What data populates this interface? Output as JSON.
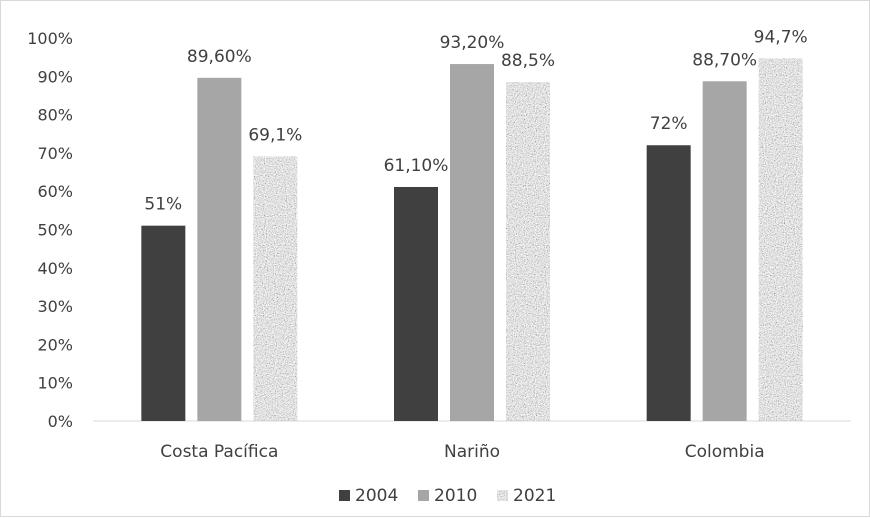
{
  "chart_data": {
    "type": "bar",
    "title": "",
    "xlabel": "",
    "ylabel": "",
    "categories": [
      "Costa Pacífica",
      "Nariño",
      "Colombia"
    ],
    "series": [
      {
        "name": "2004",
        "values": [
          51,
          61.1,
          72
        ],
        "labels": [
          "51%",
          "61,10%",
          "72%"
        ],
        "color": "#404040",
        "fill": "solid"
      },
      {
        "name": "2010",
        "values": [
          89.6,
          93.2,
          88.7
        ],
        "labels": [
          "89,60%",
          "93,20%",
          "88,70%"
        ],
        "color": "#a6a6a6",
        "fill": "solid"
      },
      {
        "name": "2021",
        "values": [
          69.1,
          88.5,
          94.7
        ],
        "labels": [
          "69,1%",
          "88,5%",
          "94,7%"
        ],
        "color": "#8c8c8c",
        "fill": "granite-texture"
      }
    ],
    "ylim": [
      0,
      100
    ],
    "yticks": [
      0,
      10,
      20,
      30,
      40,
      50,
      60,
      70,
      80,
      90,
      100
    ],
    "ytick_labels": [
      "0%",
      "10%",
      "20%",
      "30%",
      "40%",
      "50%",
      "60%",
      "70%",
      "80%",
      "90%",
      "100%"
    ],
    "grid": false,
    "legend": {
      "position": "bottom"
    }
  }
}
